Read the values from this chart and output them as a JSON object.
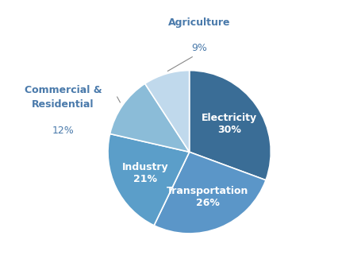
{
  "slices": [
    {
      "label": "Electricity",
      "pct": 30,
      "color": "#3A6D96",
      "text_color": "#ffffff",
      "inside": true
    },
    {
      "label": "Transportation",
      "pct": 26,
      "color": "#5B96C8",
      "text_color": "#ffffff",
      "inside": true
    },
    {
      "label": "Industry",
      "pct": 21,
      "color": "#5B9EC9",
      "text_color": "#ffffff",
      "inside": true
    },
    {
      "label": "Commercial &\nResidential",
      "pct": 12,
      "color": "#8BBCD8",
      "text_color": "#4a7aab",
      "inside": false
    },
    {
      "label": "Agriculture",
      "pct": 9,
      "color": "#C0D9EC",
      "text_color": "#4a7aab",
      "inside": false
    }
  ],
  "start_angle": 90,
  "background_color": "#ffffff",
  "label_fontsize": 9,
  "pct_fontsize": 9,
  "outside_label_color": "#4a7aab"
}
